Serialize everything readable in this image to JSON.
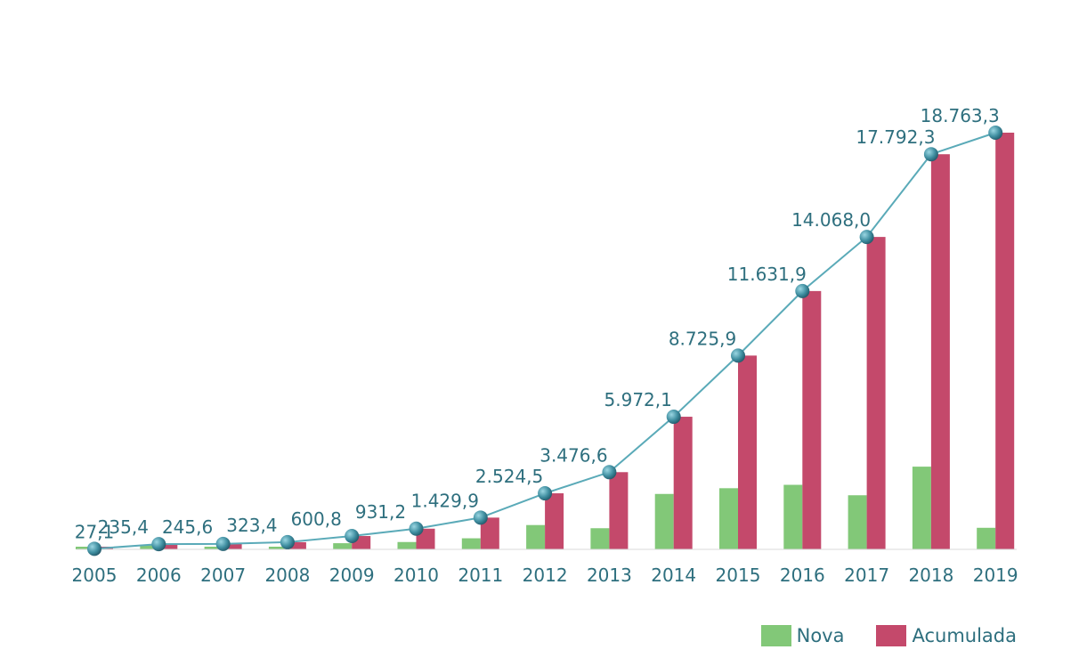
{
  "chart_data": {
    "type": "bar",
    "categories": [
      "2005",
      "2006",
      "2007",
      "2008",
      "2009",
      "2010",
      "2011",
      "2012",
      "2013",
      "2014",
      "2015",
      "2016",
      "2017",
      "2018",
      "2019"
    ],
    "series": [
      {
        "name": "Nova",
        "type": "bar",
        "color": "#82c878",
        "values": [
          27.1,
          208.3,
          10.2,
          77.8,
          277.4,
          330.4,
          498.7,
          1094.6,
          952.1,
          2495.5,
          2753.8,
          2906.0,
          2436.1,
          3724.3,
          971.0
        ]
      },
      {
        "name": "Acumulada",
        "type": "bar",
        "color": "#c4496b",
        "values": [
          27.1,
          235.4,
          245.6,
          323.4,
          600.8,
          931.2,
          1429.9,
          2524.5,
          3476.6,
          5972.1,
          8725.9,
          11631.9,
          14068.0,
          17792.3,
          18763.3
        ]
      },
      {
        "name": "Acumulada",
        "type": "line",
        "color": "#5aaab8",
        "values": [
          27.1,
          235.4,
          245.6,
          323.4,
          600.8,
          931.2,
          1429.9,
          2524.5,
          3476.6,
          5972.1,
          8725.9,
          11631.9,
          14068.0,
          17792.3,
          18763.3
        ],
        "data_labels": [
          "27,1",
          "235,4",
          "245,6",
          "323,4",
          "600,8",
          "931,2",
          "1.429,9",
          "2.524,5",
          "3.476,6",
          "5.972,1",
          "8.725,9",
          "11.631,9",
          "14.068,0",
          "17.792,3",
          "18.763,3"
        ]
      }
    ],
    "title": "",
    "xlabel": "",
    "ylabel": "",
    "ylim": [
      0,
      19000
    ],
    "grid": false,
    "legend_position": "bottom-right"
  },
  "legend": {
    "nova_label": "Nova",
    "acumulada_label": "Acumulada"
  }
}
